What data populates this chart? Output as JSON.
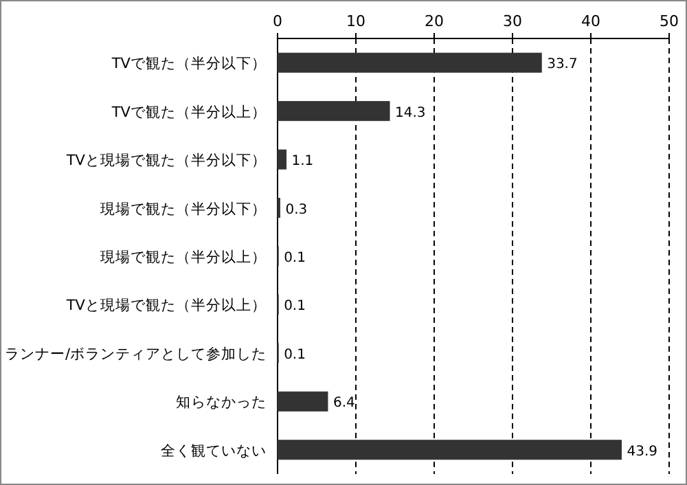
{
  "chart_data": {
    "type": "bar",
    "orientation": "horizontal",
    "categories": [
      "TVで観た（半分以下）",
      "TVで観た（半分以上）",
      "TVと現場で観た（半分以下）",
      "現場で観た（半分以下）",
      "現場で観た（半分以上）",
      "TVと現場で観た（半分以上）",
      "ランナー/ボランティアとして参加した",
      "知らなかった",
      "全く観ていない"
    ],
    "values": [
      33.7,
      14.3,
      1.1,
      0.3,
      0.1,
      0.1,
      0.1,
      6.4,
      43.9
    ],
    "color": "#333333",
    "xlim": [
      0,
      50
    ],
    "xticks": [
      0,
      10,
      20,
      30,
      40,
      50
    ],
    "grid": "x",
    "data_labels": true
  }
}
